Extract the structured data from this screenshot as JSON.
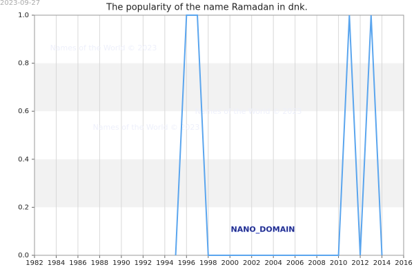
{
  "chart_data": {
    "type": "line",
    "title": "The popularity of the name Ramadan in dnk.",
    "date_stamp": "2023-09-27",
    "watermarks": [
      "Names of the World © 2023",
      "Names of the World © 2023",
      "Names of the World © 2023"
    ],
    "domain_label": "NANO_DOMAIN",
    "x": [
      1995,
      1996,
      1997,
      1998,
      1999,
      2000,
      2001,
      2002,
      2003,
      2004,
      2005,
      2006,
      2007,
      2008,
      2009,
      2010,
      2011,
      2012,
      2013,
      2014
    ],
    "series": [
      {
        "name": "Ramadan",
        "color": "#5aa5ee",
        "values": [
          0,
          1,
          1,
          0,
          0,
          0,
          0,
          0,
          0,
          0,
          0,
          0,
          0,
          0,
          0,
          0,
          1,
          0,
          1,
          0
        ]
      }
    ],
    "xlim": [
      1982,
      2016
    ],
    "xticks": [
      1982,
      1984,
      1986,
      1988,
      1990,
      1992,
      1994,
      1996,
      1998,
      2000,
      2002,
      2004,
      2006,
      2008,
      2010,
      2012,
      2014,
      2016
    ],
    "ylim": [
      0,
      1
    ],
    "yticks": [
      {
        "value": 0,
        "label": "0.0"
      },
      0.2,
      0.4,
      0.6,
      0.8,
      {
        "value": 1,
        "label": "1.0"
      }
    ],
    "grid": true
  }
}
